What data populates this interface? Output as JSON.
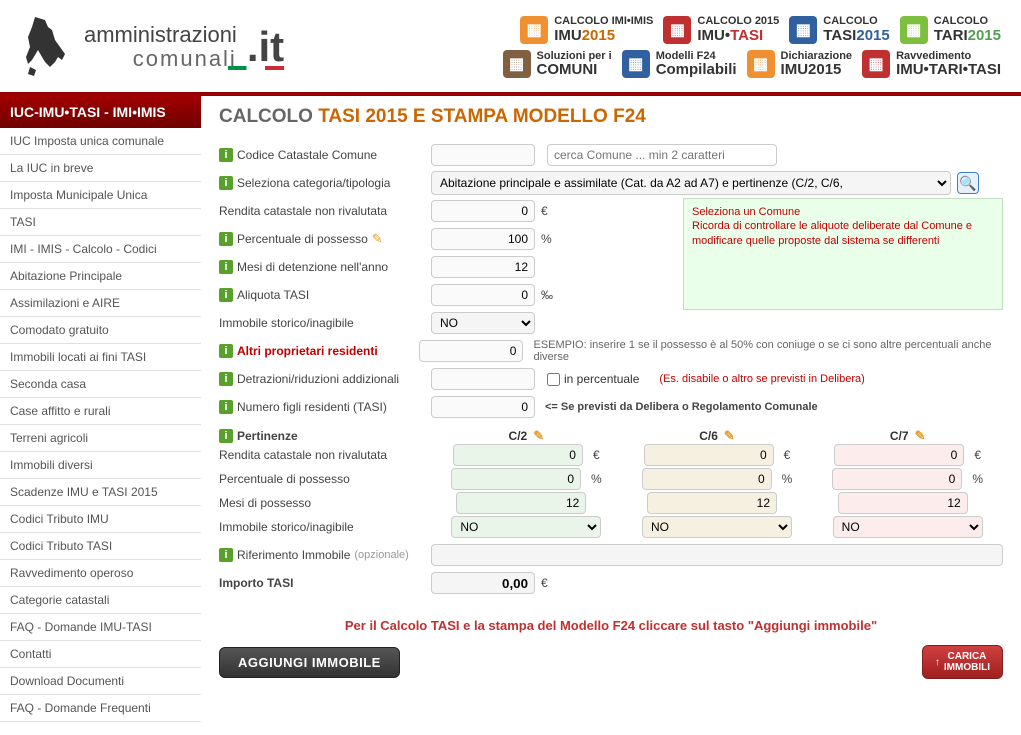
{
  "logo": {
    "line1": "amministrazioni",
    "line2": "comunali",
    "suffix": ".it"
  },
  "topnav": {
    "row1": [
      {
        "icon": "icon-orange",
        "l1": "CALCOLO IMI•IMIS",
        "l2a": "IMU",
        "l2b": "2015",
        "color2": "#cc6600"
      },
      {
        "icon": "icon-red",
        "l1": "CALCOLO 2015",
        "l2a": "IMU•",
        "l2b": "TASI",
        "color2": "#c03030"
      },
      {
        "icon": "icon-blue",
        "l1": "CALCOLO",
        "l2a": "TASI",
        "l2b": "2015",
        "color2": "#3060a0"
      },
      {
        "icon": "icon-lime",
        "l1": "CALCOLO",
        "l2a": "TARI",
        "l2b": "2015",
        "color2": "#50a050"
      }
    ],
    "row2": [
      {
        "icon": "icon-brown",
        "l1": "Soluzioni per i",
        "l2a": "COMUNI",
        "l2b": "",
        "color2": "#333"
      },
      {
        "icon": "icon-blue",
        "l1": "Modelli F24",
        "l2a": "Compilabili",
        "l2b": "",
        "color2": "#333"
      },
      {
        "icon": "icon-orange",
        "l1": "Dichiarazione",
        "l2a": "IMU2015",
        "l2b": "",
        "color2": "#333"
      },
      {
        "icon": "icon-red",
        "l1": "Ravvedimento",
        "l2a": "IMU•TARI•TASI",
        "l2b": "",
        "color2": "#333"
      }
    ]
  },
  "sidebar": {
    "header": "IUC-IMU•TASI - IMI•IMIS",
    "items": [
      "IUC Imposta unica comunale",
      "La IUC in breve",
      "Imposta Municipale Unica",
      "TASI",
      "IMI - IMIS - Calcolo - Codici",
      "Abitazione Principale",
      "Assimilazioni e AIRE",
      "Comodato gratuito",
      "Immobili locati ai fini TASI",
      "Seconda casa",
      "Case affitto e rurali",
      "Terreni agricoli",
      "Immobili diversi",
      "Scadenze IMU e TASI 2015",
      "Codici Tributo IMU",
      "Codici Tributo TASI",
      "Ravvedimento operoso",
      "Categorie catastali",
      "FAQ - Domande IMU-TASI",
      "Contatti",
      "Download Documenti",
      "FAQ - Domande Frequenti"
    ]
  },
  "title": {
    "p1": "CALCOLO ",
    "accent1": "TASI 2015",
    "p2": " E STAMPA MODELLO F24"
  },
  "form": {
    "codice_label": "Codice Catastale Comune",
    "codice_val": "",
    "cerca_placeholder": "cerca Comune ... min 2 caratteri",
    "categoria_label": "Seleziona categoria/tipologia",
    "categoria_val": "Abitazione principale e assimilate (Cat. da A2 ad A7) e pertinenze (C/2, C/6,",
    "rendita_label": "Rendita catastale non rivalutata",
    "rendita_val": "0",
    "euro": "€",
    "perc_label": "Percentuale di possesso",
    "perc_val": "100",
    "pct": "%",
    "mesi_label": "Mesi di detenzione nell'anno",
    "mesi_val": "12",
    "aliquota_label": "Aliquota TASI",
    "aliquota_val": "0",
    "permille": "‰",
    "storico_label": "Immobile storico/inagibile",
    "storico_val": "NO",
    "altri_label": "Altri proprietari residenti",
    "altri_val": "0",
    "altri_hint": "ESEMPIO: inserire 1 se il possesso è al 50% con coniuge o se ci sono altre percentuali anche diverse",
    "detraz_label": "Detrazioni/riduzioni addizionali",
    "detraz_val": "",
    "detraz_cb": "in percentuale",
    "detraz_hint": "(Es. disabile o altro se previsti in Delibera)",
    "figli_label": "Numero figli residenti (TASI)",
    "figli_val": "0",
    "figli_hint": "<= Se previsti da Delibera o Regolamento Comunale",
    "warn_title": "Seleziona un Comune",
    "warn_body": "Ricorda di controllare le aliquote deliberate dal Comune e modificare quelle proposte dal sistema se differenti"
  },
  "pert": {
    "header": "Pertinenze",
    "cols": [
      "C/2",
      "C/6",
      "C/7"
    ],
    "rows": [
      {
        "label": "Rendita catastale non rivalutata",
        "vals": [
          "0",
          "0",
          "0"
        ],
        "unit": "€"
      },
      {
        "label": "Percentuale di possesso",
        "vals": [
          "0",
          "0",
          "0"
        ],
        "unit": "%"
      },
      {
        "label": "Mesi di possesso",
        "vals": [
          "12",
          "12",
          "12"
        ],
        "unit": ""
      },
      {
        "label": "Immobile storico/inagibile",
        "vals": [
          "NO",
          "NO",
          "NO"
        ],
        "unit": "",
        "select": true
      }
    ],
    "colors": [
      "green-bg",
      "beige-bg",
      "pink-bg"
    ],
    "rif_label": "Riferimento Immobile",
    "rif_opt": "(opzionale)",
    "importo_label": "Importo TASI",
    "importo_val": "0,00"
  },
  "cta": {
    "text": "Per il Calcolo TASI e la stampa del Modello F24 cliccare sul tasto \"Aggiungi immobile\"",
    "btn_add": "AGGIUNGI IMMOBILE",
    "btn_carica_l1": "CARICA",
    "btn_carica_l2": "IMMOBILI"
  }
}
